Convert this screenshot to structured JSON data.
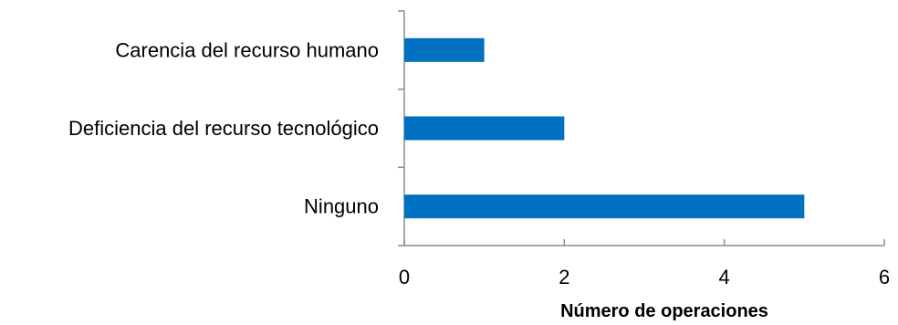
{
  "chart_data": {
    "type": "bar",
    "orientation": "horizontal",
    "categories": [
      "Carencia del recurso humano",
      "Deficiencia del recurso tecnológico",
      "Ninguno"
    ],
    "values": [
      1,
      2,
      5
    ],
    "xlabel": "Número de operaciones",
    "ylabel": "",
    "xlim": [
      0,
      6
    ],
    "xticks": [
      "0",
      "2",
      "4",
      "6"
    ],
    "grid": false,
    "legend": "none",
    "bar_color": "#0070c0",
    "axis_color": "#8c8c8c"
  }
}
